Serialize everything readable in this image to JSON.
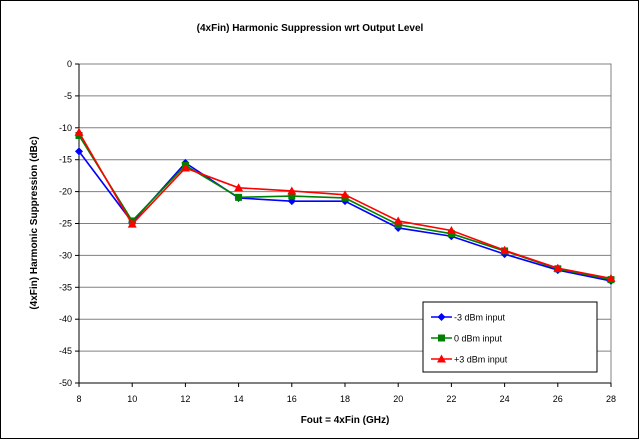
{
  "chart_data": {
    "type": "line",
    "title": "(4xFin) Harmonic Suppression wrt Output Level",
    "xlabel": "Fout = 4xFin (GHz)",
    "ylabel": "(4xFin) Harmonic Suppression (dBc)",
    "xlim": [
      8,
      28
    ],
    "ylim": [
      -50,
      0
    ],
    "x_ticks": [
      8,
      10,
      12,
      14,
      16,
      18,
      20,
      22,
      24,
      26,
      28
    ],
    "y_ticks": [
      0,
      -5,
      -10,
      -15,
      -20,
      -25,
      -30,
      -35,
      -40,
      -45,
      -50
    ],
    "grid": "horizontal",
    "legend_position": "bottom-right",
    "x": [
      8,
      10,
      12,
      14,
      16,
      18,
      20,
      22,
      24,
      26,
      28
    ],
    "series": [
      {
        "name": "-3 dBm input",
        "color": "#0000ff",
        "marker": "diamond",
        "values": [
          -13.7,
          -24.8,
          -15.5,
          -21.0,
          -21.5,
          -21.5,
          -25.7,
          -27.0,
          -29.8,
          -32.3,
          -34.0
        ]
      },
      {
        "name": "0 dBm input",
        "color": "#008000",
        "marker": "square",
        "values": [
          -11.2,
          -24.6,
          -15.9,
          -20.9,
          -20.7,
          -21.0,
          -25.2,
          -26.6,
          -29.3,
          -32.1,
          -33.8
        ]
      },
      {
        "name": "+3 dBm input",
        "color": "#ff0000",
        "marker": "triangle",
        "values": [
          -10.7,
          -25.1,
          -16.3,
          -19.4,
          -19.9,
          -20.5,
          -24.6,
          -26.1,
          -29.2,
          -32.0,
          -33.6
        ]
      }
    ]
  }
}
